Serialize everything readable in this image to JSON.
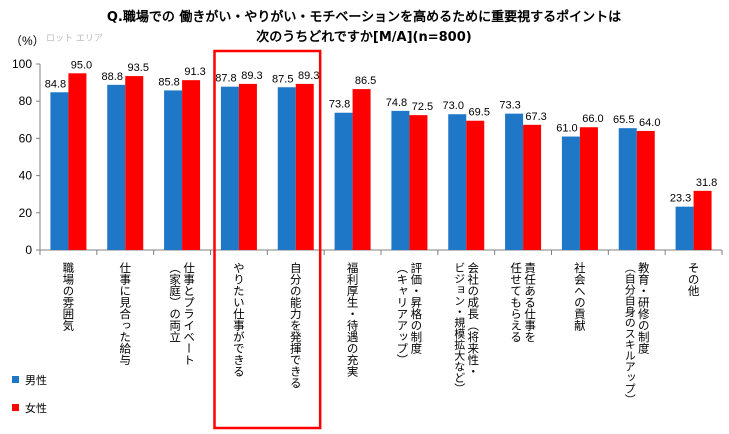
{
  "chart_data": {
    "type": "bar",
    "title_line1": "Q.職場での 働きがい・やりがい・モチベーションを高めるために重要視するポイントは",
    "title_line2": "次のうちどれですか[M/A](n=800)",
    "ylabel": "（%）",
    "ylim": [
      0,
      100
    ],
    "yticks": [
      0,
      20,
      40,
      60,
      80,
      100
    ],
    "plot_area_label": "ロット エリア",
    "categories": [
      "職場の雰囲気",
      "仕事に見合った給与",
      "仕事とプライベート（家庭）の両立",
      "やりたい仕事ができる",
      "自分の能力を発揮できる",
      "福利厚生・待遇の充実",
      "評価・昇格の制度（キャリアアップ）",
      "会社の成長（将来性・ビジョン・規模拡大など）",
      "責任ある仕事を任せてもらえる",
      "社会への貢献",
      "教育・研修の制度（自分自身のスキルアップ）",
      "その他"
    ],
    "category_lines": [
      [
        "職場の雰囲気"
      ],
      [
        "仕事に見合った給与"
      ],
      [
        "仕事とプライベート",
        "（家庭）の両立"
      ],
      [
        "やりたい仕事ができる"
      ],
      [
        "自分の能力を発揮できる"
      ],
      [
        "福利厚生・待遇の充実"
      ],
      [
        "評価・昇格の制度",
        "（キャリアアップ）"
      ],
      [
        "会社の成長（将来性・",
        "ビジョン・規模拡大など）"
      ],
      [
        "責任ある仕事を",
        "任せてもらえる"
      ],
      [
        "社会への貢献"
      ],
      [
        "教育・研修の制度",
        "（自分自身のスキルアップ）"
      ],
      [
        "その他"
      ]
    ],
    "series": [
      {
        "name": "男性",
        "color": "#1f77c8",
        "values": [
          84.8,
          88.8,
          85.8,
          87.8,
          87.5,
          73.8,
          74.8,
          73.0,
          73.3,
          61.0,
          65.5,
          23.3
        ]
      },
      {
        "name": "女性",
        "color": "#ff0000",
        "values": [
          95.0,
          93.5,
          91.3,
          89.3,
          89.3,
          86.5,
          72.5,
          69.5,
          67.3,
          66.0,
          64.0,
          31.8
        ]
      }
    ],
    "value_labels": [
      [
        "84.8",
        "88.8",
        "85.8",
        "87.8",
        "87.5",
        "73.8",
        "74.8",
        "73.0",
        "73.3",
        "61.0",
        "65.5",
        "23.3"
      ],
      [
        "95.0",
        "93.5",
        "91.3",
        "89.3",
        "89.3",
        "86.5",
        "72.5",
        "69.5",
        "67.3",
        "66.0",
        "64.0",
        "31.8"
      ]
    ],
    "highlight": {
      "categories": [
        3,
        4
      ],
      "color": "#ff0000"
    },
    "legend": {
      "position": "bottom-left"
    },
    "grid": false
  }
}
